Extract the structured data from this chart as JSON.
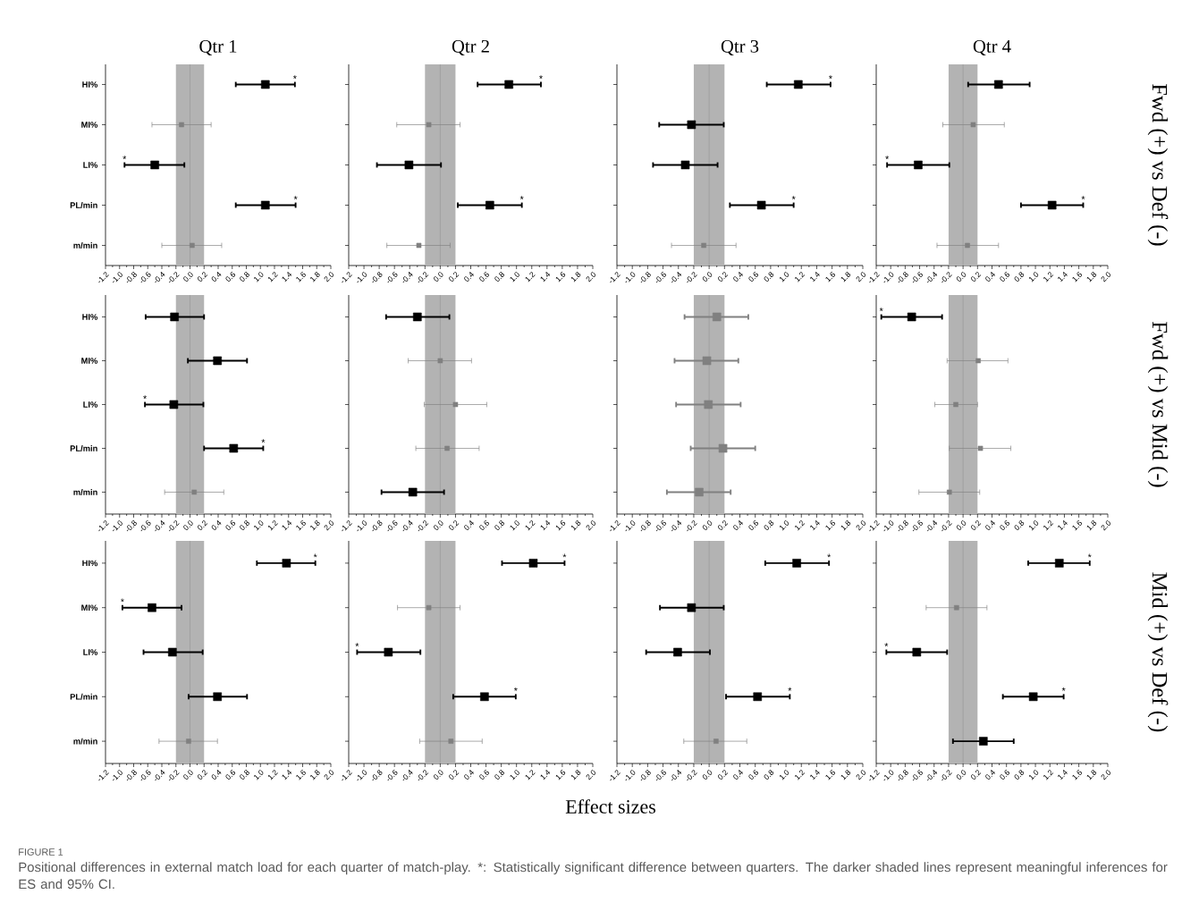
{
  "chart_data": [
    {
      "type": "scatter",
      "orientation": "horizontal",
      "title": "Qtr 1",
      "categories": [
        "HI%",
        "MI%",
        "LI%",
        "PL/min",
        "m/min"
      ],
      "marker": "square",
      "xlim": [
        -1.2,
        2.0
      ],
      "xticks": [
        -1.2,
        {
          "value": -1,
          "label": "-1.0"
        },
        -0.8,
        -0.6,
        -0.4,
        -0.2,
        {
          "value": 0,
          "label": "0.0"
        },
        0.2,
        0.4,
        0.6,
        0.8,
        {
          "value": 1,
          "label": "1.0"
        },
        1.2,
        1.4,
        1.6,
        1.8,
        {
          "value": 2,
          "label": "2.0"
        }
      ],
      "bands": [
        {
          "axis": "x",
          "from": -0.2,
          "to": 0.2,
          "color": "#b3b3b3"
        }
      ],
      "ref_lines": [
        {
          "axis": "x",
          "value": 0,
          "color": "#999999"
        }
      ],
      "series": [
        {
          "color": "#000000",
          "values": [
            1.07,
            null,
            -0.5,
            1.07,
            null
          ],
          "errors": [
            [
              0.65,
              1.49
            ],
            null,
            [
              -0.93,
              -0.08
            ],
            [
              0.65,
              1.5
            ],
            null
          ]
        },
        {
          "color": "#808080",
          "values": [
            null,
            -0.12,
            null,
            null,
            0.03
          ],
          "errors": [
            null,
            [
              -0.54,
              0.3
            ],
            null,
            null,
            [
              -0.4,
              0.45
            ]
          ]
        }
      ],
      "annotations": [
        "Effect sizes",
        "FIGURE 1",
        "Positional differences in external match load for each quarter of match-play. *: Statistically significant difference between quarters. The darker shaded lines represent meaningful inferences for ES and 95% CI.",
        {
          "text": "*",
          "x": 1.49,
          "y": "HI%"
        },
        {
          "text": "*",
          "x": -0.93,
          "y": "LI%"
        },
        {
          "text": "*",
          "x": 1.5,
          "y": "PL/min"
        }
      ]
    },
    {
      "type": "scatter",
      "orientation": "horizontal",
      "title": "Qtr 2",
      "categories": [
        "HI%",
        "MI%",
        "LI%",
        "PL/min",
        "m/min"
      ],
      "marker": "square",
      "tick_labels": "x",
      "xlim": [
        -1.2,
        2.0
      ],
      "xticks": [
        -1.2,
        {
          "value": -1,
          "label": "-1.0"
        },
        -0.8,
        -0.6,
        -0.4,
        -0.2,
        {
          "value": 0,
          "label": "0.0"
        },
        0.2,
        0.4,
        0.6,
        0.8,
        {
          "value": 1,
          "label": "1.0"
        },
        1.2,
        1.4,
        1.6,
        1.8,
        {
          "value": 2,
          "label": "2.0"
        }
      ],
      "bands": [
        {
          "axis": "x",
          "from": -0.2,
          "to": 0.2,
          "color": "#b3b3b3"
        }
      ],
      "ref_lines": [
        {
          "axis": "x",
          "value": 0,
          "color": "#999999"
        }
      ],
      "series": [
        {
          "color": "#000000",
          "values": [
            0.9,
            null,
            -0.41,
            0.65,
            null
          ],
          "errors": [
            [
              0.49,
              1.32
            ],
            null,
            [
              -0.83,
              0.01
            ],
            [
              0.23,
              1.07
            ],
            null
          ]
        },
        {
          "color": "#808080",
          "values": [
            null,
            -0.15,
            null,
            null,
            -0.28
          ],
          "errors": [
            null,
            [
              -0.57,
              0.26
            ],
            null,
            null,
            [
              -0.7,
              0.13
            ]
          ]
        }
      ],
      "annotations": [
        {
          "text": "*",
          "x": 1.32,
          "y": "HI%"
        },
        {
          "text": "*",
          "x": 1.07,
          "y": "PL/min"
        }
      ]
    },
    {
      "type": "scatter",
      "orientation": "horizontal",
      "title": "Qtr 3",
      "categories": [
        "HI%",
        "MI%",
        "LI%",
        "PL/min",
        "m/min"
      ],
      "marker": "square",
      "tick_labels": "x",
      "xlim": [
        -1.2,
        2.0
      ],
      "xticks": [
        -1.2,
        {
          "value": -1,
          "label": "-1.0"
        },
        -0.8,
        -0.6,
        -0.4,
        -0.2,
        {
          "value": 0,
          "label": "0.0"
        },
        0.2,
        0.4,
        0.6,
        0.8,
        {
          "value": 1,
          "label": "1.0"
        },
        1.2,
        1.4,
        1.6,
        1.8,
        {
          "value": 2,
          "label": "2.0"
        }
      ],
      "bands": [
        {
          "axis": "x",
          "from": -0.2,
          "to": 0.2,
          "color": "#b3b3b3"
        }
      ],
      "ref_lines": [
        {
          "axis": "x",
          "value": 0,
          "color": "#999999"
        }
      ],
      "series": [
        {
          "color": "#000000",
          "values": [
            1.16,
            -0.23,
            -0.31,
            0.68,
            null
          ],
          "errors": [
            [
              0.75,
              1.58
            ],
            [
              -0.65,
              0.19
            ],
            [
              -0.73,
              0.11
            ],
            [
              0.27,
              1.1
            ],
            null
          ]
        },
        {
          "color": "#808080",
          "values": [
            null,
            null,
            null,
            null,
            -0.07
          ],
          "errors": [
            null,
            null,
            null,
            null,
            [
              -0.49,
              0.35
            ]
          ]
        }
      ],
      "annotations": [
        {
          "text": "*",
          "x": 1.58,
          "y": "HI%"
        },
        {
          "text": "*",
          "x": 1.1,
          "y": "PL/min"
        }
      ]
    },
    {
      "type": "scatter",
      "orientation": "horizontal",
      "title": "Qtr 4",
      "y2label": "Fwd (+) vs Def (-)",
      "categories": [
        "HI%",
        "MI%",
        "LI%",
        "PL/min",
        "m/min"
      ],
      "marker": "square",
      "tick_labels": "x",
      "xlim": [
        -1.2,
        2.0
      ],
      "xticks": [
        -1.2,
        {
          "value": -1,
          "label": "-1.0"
        },
        -0.8,
        -0.6,
        -0.4,
        -0.2,
        {
          "value": 0,
          "label": "0.0"
        },
        0.2,
        0.4,
        0.6,
        0.8,
        {
          "value": 1,
          "label": "1.0"
        },
        1.2,
        1.4,
        1.6,
        1.8,
        {
          "value": 2,
          "label": "2.0"
        }
      ],
      "bands": [
        {
          "axis": "x",
          "from": -0.2,
          "to": 0.2,
          "color": "#b3b3b3"
        }
      ],
      "ref_lines": [
        {
          "axis": "x",
          "value": 0,
          "color": "#999999"
        }
      ],
      "series": [
        {
          "color": "#000000",
          "values": [
            0.49,
            null,
            -0.62,
            1.23,
            null
          ],
          "errors": [
            [
              0.07,
              0.92
            ],
            null,
            [
              -1.05,
              -0.19
            ],
            [
              0.8,
              1.66
            ],
            null
          ]
        },
        {
          "color": "#808080",
          "values": [
            null,
            0.14,
            null,
            null,
            0.06
          ],
          "errors": [
            null,
            [
              -0.28,
              0.57
            ],
            null,
            null,
            [
              -0.36,
              0.49
            ]
          ]
        }
      ],
      "annotations": [
        {
          "text": "*",
          "x": -1.05,
          "y": "LI%"
        },
        {
          "text": "*",
          "x": 1.66,
          "y": "PL/min"
        }
      ]
    },
    {
      "type": "scatter",
      "orientation": "horizontal",
      "categories": [
        "HI%",
        "MI%",
        "LI%",
        "PL/min",
        "m/min"
      ],
      "marker": "square",
      "xlim": [
        -1.2,
        2.0
      ],
      "xticks": [
        -1.2,
        {
          "value": -1,
          "label": "-1.0"
        },
        -0.8,
        -0.6,
        -0.4,
        -0.2,
        {
          "value": 0,
          "label": "0.0"
        },
        0.2,
        0.4,
        0.6,
        0.8,
        {
          "value": 1,
          "label": "1.0"
        },
        1.2,
        1.4,
        1.6,
        1.8,
        {
          "value": 2,
          "label": "2.0"
        }
      ],
      "bands": [
        {
          "axis": "x",
          "from": -0.2,
          "to": 0.2,
          "color": "#b3b3b3"
        }
      ],
      "ref_lines": [
        {
          "axis": "x",
          "value": 0,
          "color": "#999999"
        }
      ],
      "series": [
        {
          "color": "#000000",
          "values": [
            -0.22,
            0.39,
            -0.23,
            0.62,
            null
          ],
          "errors": [
            [
              -0.63,
              0.2
            ],
            [
              -0.03,
              0.81
            ],
            [
              -0.64,
              0.19
            ],
            [
              0.2,
              1.04
            ],
            null
          ]
        },
        {
          "color": "#808080",
          "values": [
            null,
            null,
            null,
            null,
            0.06
          ],
          "errors": [
            null,
            null,
            null,
            null,
            [
              -0.36,
              0.48
            ]
          ]
        }
      ],
      "annotations": [
        {
          "text": "*",
          "x": -0.64,
          "y": "LI%"
        },
        {
          "text": "*",
          "x": 1.04,
          "y": "PL/min"
        }
      ]
    },
    {
      "type": "scatter",
      "orientation": "horizontal",
      "categories": [
        "HI%",
        "MI%",
        "LI%",
        "PL/min",
        "m/min"
      ],
      "marker": "square",
      "tick_labels": "x",
      "xlim": [
        -1.2,
        2.0
      ],
      "xticks": [
        -1.2,
        {
          "value": -1,
          "label": "-1.0"
        },
        -0.8,
        -0.6,
        -0.4,
        -0.2,
        {
          "value": 0,
          "label": "0.0"
        },
        0.2,
        0.4,
        0.6,
        0.8,
        {
          "value": 1,
          "label": "1.0"
        },
        1.2,
        1.4,
        1.6,
        1.8,
        {
          "value": 2,
          "label": "2.0"
        }
      ],
      "bands": [
        {
          "axis": "x",
          "from": -0.2,
          "to": 0.2,
          "color": "#b3b3b3"
        }
      ],
      "ref_lines": [
        {
          "axis": "x",
          "value": 0,
          "color": "#999999"
        }
      ],
      "series": [
        {
          "color": "#000000",
          "values": [
            -0.3,
            null,
            null,
            null,
            -0.36
          ],
          "errors": [
            [
              -0.71,
              0.12
            ],
            null,
            null,
            null,
            [
              -0.77,
              0.05
            ]
          ]
        },
        {
          "color": "#808080",
          "values": [
            null,
            0.0,
            0.2,
            0.09,
            null
          ],
          "errors": [
            null,
            [
              -0.42,
              0.41
            ],
            [
              -0.21,
              0.61
            ],
            [
              -0.32,
              0.51
            ],
            null
          ]
        }
      ]
    },
    {
      "type": "scatter",
      "orientation": "horizontal",
      "categories": [
        "HI%",
        "MI%",
        "LI%",
        "PL/min",
        "m/min"
      ],
      "marker": "square",
      "tick_labels": "x",
      "xlim": [
        -1.2,
        2.0
      ],
      "xticks": [
        -1.2,
        {
          "value": -1,
          "label": "-1.0"
        },
        -0.8,
        -0.6,
        -0.4,
        -0.2,
        {
          "value": 0,
          "label": "0.0"
        },
        0.2,
        0.4,
        0.6,
        0.8,
        {
          "value": 1,
          "label": "1.0"
        },
        1.2,
        1.4,
        1.6,
        1.8,
        {
          "value": 2,
          "label": "2.0"
        }
      ],
      "bands": [
        {
          "axis": "x",
          "from": -0.2,
          "to": 0.2,
          "color": "#b3b3b3"
        }
      ],
      "ref_lines": [
        {
          "axis": "x",
          "value": 0,
          "color": "#999999"
        }
      ],
      "series": [
        {
          "color": "#808080",
          "values": [
            0.1,
            -0.03,
            -0.01,
            0.18,
            -0.13
          ],
          "errors": [
            [
              -0.32,
              0.51
            ],
            [
              -0.45,
              0.38
            ],
            [
              -0.43,
              0.41
            ],
            [
              -0.24,
              0.6
            ],
            [
              -0.55,
              0.28
            ]
          ]
        }
      ]
    },
    {
      "type": "scatter",
      "orientation": "horizontal",
      "y2label": "Fwd (+) vs Mid (-)",
      "categories": [
        "HI%",
        "MI%",
        "LI%",
        "PL/min",
        "m/min"
      ],
      "marker": "square",
      "tick_labels": "x",
      "xlim": [
        -1.2,
        2.0
      ],
      "xticks": [
        -1.2,
        {
          "value": -1,
          "label": "-1.0"
        },
        -0.8,
        -0.6,
        -0.4,
        -0.2,
        {
          "value": 0,
          "label": "0.0"
        },
        0.2,
        0.4,
        0.6,
        0.8,
        {
          "value": 1,
          "label": "1.0"
        },
        1.2,
        1.4,
        1.6,
        1.8,
        {
          "value": 2,
          "label": "2.0"
        }
      ],
      "bands": [
        {
          "axis": "x",
          "from": -0.2,
          "to": 0.2,
          "color": "#b3b3b3"
        }
      ],
      "ref_lines": [
        {
          "axis": "x",
          "value": 0,
          "color": "#999999"
        }
      ],
      "series": [
        {
          "color": "#000000",
          "values": [
            -0.71,
            null,
            null,
            null,
            null
          ],
          "errors": [
            [
              -1.13,
              -0.29
            ],
            null,
            null,
            null,
            null
          ]
        },
        {
          "color": "#808080",
          "values": [
            null,
            0.21,
            -0.1,
            0.24,
            -0.19
          ],
          "errors": [
            null,
            [
              -0.22,
              0.62
            ],
            [
              -0.39,
              0.2
            ],
            [
              -0.19,
              0.66
            ],
            [
              -0.61,
              0.23
            ]
          ]
        }
      ],
      "annotations": [
        {
          "text": "*",
          "x": -1.13,
          "y": "HI%"
        }
      ]
    },
    {
      "type": "scatter",
      "orientation": "horizontal",
      "categories": [
        "HI%",
        "MI%",
        "LI%",
        "PL/min",
        "m/min"
      ],
      "marker": "square",
      "xlim": [
        -1.2,
        2.0
      ],
      "xticks": [
        -1.2,
        {
          "value": -1,
          "label": "-1.0"
        },
        -0.8,
        -0.6,
        -0.4,
        -0.2,
        {
          "value": 0,
          "label": "0.0"
        },
        0.2,
        0.4,
        0.6,
        0.8,
        {
          "value": 1,
          "label": "1.0"
        },
        1.2,
        1.4,
        1.6,
        1.8,
        {
          "value": 2,
          "label": "2.0"
        }
      ],
      "bands": [
        {
          "axis": "x",
          "from": -0.2,
          "to": 0.2,
          "color": "#b3b3b3"
        }
      ],
      "ref_lines": [
        {
          "axis": "x",
          "value": 0,
          "color": "#999999"
        }
      ],
      "series": [
        {
          "color": "#000000",
          "values": [
            1.37,
            -0.54,
            -0.25,
            0.39,
            null
          ],
          "errors": [
            [
              0.95,
              1.78
            ],
            [
              -0.96,
              -0.12
            ],
            [
              -0.66,
              0.18
            ],
            [
              -0.02,
              0.81
            ],
            null
          ]
        },
        {
          "color": "#808080",
          "values": [
            null,
            null,
            null,
            null,
            -0.02
          ],
          "errors": [
            null,
            null,
            null,
            null,
            [
              -0.44,
              0.39
            ]
          ]
        }
      ],
      "annotations": [
        {
          "text": "*",
          "x": 1.78,
          "y": "HI%"
        },
        {
          "text": "*",
          "x": -0.96,
          "y": "MI%"
        }
      ]
    },
    {
      "type": "scatter",
      "orientation": "horizontal",
      "categories": [
        "HI%",
        "MI%",
        "LI%",
        "PL/min",
        "m/min"
      ],
      "marker": "square",
      "tick_labels": "x",
      "xlim": [
        -1.2,
        2.0
      ],
      "xticks": [
        -1.2,
        {
          "value": -1,
          "label": "-1.0"
        },
        -0.8,
        -0.6,
        -0.4,
        -0.2,
        {
          "value": 0,
          "label": "0.0"
        },
        0.2,
        0.4,
        0.6,
        0.8,
        {
          "value": 1,
          "label": "1.0"
        },
        1.2,
        1.4,
        1.6,
        1.8,
        {
          "value": 2,
          "label": "2.0"
        }
      ],
      "bands": [
        {
          "axis": "x",
          "from": -0.2,
          "to": 0.2,
          "color": "#b3b3b3"
        }
      ],
      "ref_lines": [
        {
          "axis": "x",
          "value": 0,
          "color": "#999999"
        }
      ],
      "series": [
        {
          "color": "#000000",
          "values": [
            1.22,
            null,
            -0.68,
            0.58,
            null
          ],
          "errors": [
            [
              0.81,
              1.63
            ],
            null,
            [
              -1.09,
              -0.26
            ],
            [
              0.17,
              0.99
            ],
            null
          ]
        },
        {
          "color": "#808080",
          "values": [
            null,
            -0.15,
            null,
            null,
            0.14
          ],
          "errors": [
            null,
            [
              -0.56,
              0.26
            ],
            null,
            null,
            [
              -0.27,
              0.55
            ]
          ]
        }
      ],
      "annotations": [
        {
          "text": "*",
          "x": 1.63,
          "y": "HI%"
        },
        {
          "text": "*",
          "x": -1.09,
          "y": "LI%"
        },
        {
          "text": "*",
          "x": 0.99,
          "y": "PL/min"
        }
      ]
    },
    {
      "type": "scatter",
      "orientation": "horizontal",
      "categories": [
        "HI%",
        "MI%",
        "LI%",
        "PL/min",
        "m/min"
      ],
      "marker": "square",
      "tick_labels": "x",
      "xlim": [
        -1.2,
        2.0
      ],
      "xticks": [
        -1.2,
        {
          "value": -1,
          "label": "-1.0"
        },
        -0.8,
        -0.6,
        -0.4,
        -0.2,
        {
          "value": 0,
          "label": "0.0"
        },
        0.2,
        0.4,
        0.6,
        0.8,
        {
          "value": 1,
          "label": "1.0"
        },
        1.2,
        1.4,
        1.6,
        1.8,
        {
          "value": 2,
          "label": "2.0"
        }
      ],
      "bands": [
        {
          "axis": "x",
          "from": -0.2,
          "to": 0.2,
          "color": "#b3b3b3"
        }
      ],
      "ref_lines": [
        {
          "axis": "x",
          "value": 0,
          "color": "#999999"
        }
      ],
      "series": [
        {
          "color": "#000000",
          "values": [
            1.14,
            -0.23,
            -0.41,
            0.63,
            null
          ],
          "errors": [
            [
              0.73,
              1.56
            ],
            [
              -0.64,
              0.19
            ],
            [
              -0.82,
              0.01
            ],
            [
              0.22,
              1.05
            ],
            null
          ]
        },
        {
          "color": "#808080",
          "values": [
            null,
            null,
            null,
            null,
            0.09
          ],
          "errors": [
            null,
            null,
            null,
            null,
            [
              -0.33,
              0.49
            ]
          ]
        }
      ],
      "annotations": [
        {
          "text": "*",
          "x": 1.56,
          "y": "HI%"
        },
        {
          "text": "*",
          "x": 1.05,
          "y": "PL/min"
        }
      ]
    },
    {
      "type": "scatter",
      "orientation": "horizontal",
      "y2label": "Mid (+) vs Def (-)",
      "categories": [
        "HI%",
        "MI%",
        "LI%",
        "PL/min",
        "m/min"
      ],
      "marker": "square",
      "tick_labels": "x",
      "xlim": [
        -1.2,
        2.0
      ],
      "xticks": [
        -1.2,
        {
          "value": -1,
          "label": "-1.0"
        },
        -0.8,
        -0.6,
        -0.4,
        -0.2,
        {
          "value": 0,
          "label": "0.0"
        },
        0.2,
        0.4,
        0.6,
        0.8,
        {
          "value": 1,
          "label": "1.0"
        },
        1.2,
        1.4,
        1.6,
        1.8,
        {
          "value": 2,
          "label": "2.0"
        }
      ],
      "bands": [
        {
          "axis": "x",
          "from": -0.2,
          "to": 0.2,
          "color": "#b3b3b3"
        }
      ],
      "ref_lines": [
        {
          "axis": "x",
          "value": 0,
          "color": "#999999"
        }
      ],
      "series": [
        {
          "color": "#000000",
          "values": [
            1.33,
            null,
            -0.64,
            0.97,
            0.28
          ],
          "errors": [
            [
              0.9,
              1.75
            ],
            null,
            [
              -1.06,
              -0.22
            ],
            [
              0.55,
              1.39
            ],
            [
              -0.14,
              0.7
            ]
          ]
        },
        {
          "color": "#808080",
          "values": [
            null,
            -0.09,
            null,
            null,
            null
          ],
          "errors": [
            null,
            [
              -0.51,
              0.33
            ],
            null,
            null,
            null
          ]
        }
      ],
      "annotations": [
        {
          "text": "*",
          "x": 1.75,
          "y": "HI%"
        },
        {
          "text": "*",
          "x": -1.06,
          "y": "LI%"
        },
        {
          "text": "*",
          "x": 1.39,
          "y": "PL/min"
        }
      ]
    }
  ]
}
